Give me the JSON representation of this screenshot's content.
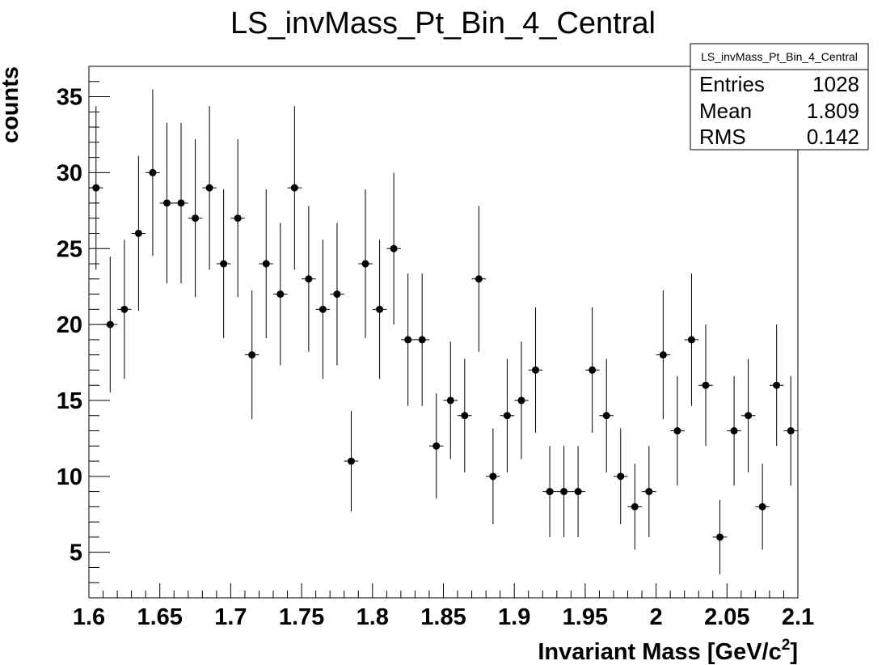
{
  "chart_data": {
    "type": "scatter",
    "title": "LS_invMass_Pt_Bin_4_Central",
    "xlabel": "Invariant Mass [GeV/c",
    "xlabel_sup": "2",
    "xlabel_suffix": "]",
    "ylabel": "counts",
    "xlim": [
      1.6,
      2.1
    ],
    "ylim": [
      2.0,
      37.0
    ],
    "x_ticks": [
      1.6,
      1.65,
      1.7,
      1.75,
      1.8,
      1.85,
      1.9,
      1.95,
      2.0,
      2.05,
      2.1
    ],
    "x_tick_labels": [
      "1.6",
      "1.65",
      "1.7",
      "1.75",
      "1.8",
      "1.85",
      "1.9",
      "1.95",
      "2",
      "2.05",
      "2.1"
    ],
    "y_ticks": [
      5,
      10,
      15,
      20,
      25,
      30,
      35
    ],
    "y_tick_labels": [
      "5",
      "10",
      "15",
      "20",
      "25",
      "30",
      "35"
    ],
    "bin_width": 0.01,
    "error_bars": "sqrt(N)",
    "marker_color": "#000000",
    "x": [
      1.605,
      1.615,
      1.625,
      1.635,
      1.645,
      1.655,
      1.665,
      1.675,
      1.685,
      1.695,
      1.705,
      1.715,
      1.725,
      1.735,
      1.745,
      1.755,
      1.765,
      1.775,
      1.785,
      1.795,
      1.805,
      1.815,
      1.825,
      1.835,
      1.845,
      1.855,
      1.865,
      1.875,
      1.885,
      1.895,
      1.905,
      1.915,
      1.925,
      1.935,
      1.945,
      1.955,
      1.965,
      1.975,
      1.985,
      1.995,
      2.005,
      2.015,
      2.025,
      2.035,
      2.045,
      2.055,
      2.065,
      2.075,
      2.085,
      2.095
    ],
    "y": [
      29,
      20,
      21,
      26,
      30,
      28,
      28,
      27,
      29,
      24,
      27,
      18,
      24,
      22,
      29,
      23,
      21,
      22,
      11,
      24,
      21,
      25,
      19,
      19,
      12,
      15,
      14,
      23,
      10,
      14,
      15,
      17,
      9,
      9,
      9,
      17,
      14,
      10,
      8,
      9,
      18,
      13,
      19,
      16,
      6,
      13,
      14,
      8,
      16,
      13
    ]
  },
  "stats_box": {
    "title": "LS_invMass_Pt_Bin_4_Central",
    "entries_label": "Entries",
    "entries_value": "1028",
    "mean_label": "Mean",
    "mean_value": "1.809",
    "rms_label": "RMS",
    "rms_value": "0.142"
  }
}
